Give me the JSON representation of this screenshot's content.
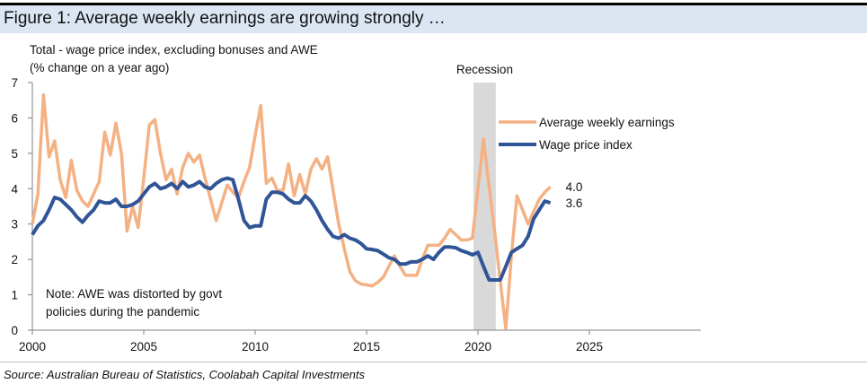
{
  "title": "Figure 1: Average weekly earnings are growing strongly …",
  "source": "Source: Australian Bureau of Statistics, Coolabah Capital Investments",
  "colors": {
    "awe": "#f4b183",
    "wpi": "#2f5597",
    "recession": "#d9d9d9",
    "title_band": "#dce6f2"
  },
  "chart_data": {
    "type": "line",
    "title": "Total - wage price index, excluding bonuses and AWE",
    "ylabel": "(% change on a year ago)",
    "xlim": [
      2000,
      2030
    ],
    "ylim": [
      0,
      7
    ],
    "xticks": [
      2000,
      2005,
      2010,
      2015,
      2020,
      2025
    ],
    "yticks": [
      0,
      1,
      2,
      3,
      4,
      5,
      6,
      7
    ],
    "grid": false,
    "legend": "right",
    "x_start": 2000,
    "x_step": 0.25,
    "recession": {
      "label": "Recession",
      "start": 2019.8,
      "end": 2020.8
    },
    "note": [
      "Note: AWE was distorted by govt",
      "policies during the pandemic"
    ],
    "series": [
      {
        "name": "Average weekly earnings",
        "end_label": "4.0",
        "values": [
          3.0,
          3.85,
          6.65,
          4.9,
          5.35,
          4.25,
          3.75,
          4.8,
          3.95,
          3.65,
          3.5,
          3.85,
          4.2,
          5.6,
          4.95,
          5.85,
          5.0,
          2.8,
          3.5,
          2.9,
          4.3,
          5.8,
          5.95,
          5.0,
          4.25,
          4.55,
          3.85,
          4.6,
          5.0,
          4.75,
          4.95,
          4.3,
          3.7,
          3.1,
          3.6,
          4.1,
          3.9,
          3.75,
          4.2,
          4.6,
          5.5,
          6.35,
          4.15,
          4.3,
          3.95,
          3.95,
          4.7,
          3.8,
          4.4,
          3.85,
          4.55,
          4.85,
          4.55,
          4.9,
          3.95,
          3.0,
          2.3,
          1.65,
          1.4,
          1.3,
          1.28,
          1.25,
          1.35,
          1.5,
          1.8,
          2.1,
          1.8,
          1.55,
          1.55,
          1.55,
          2.0,
          2.4,
          2.4,
          2.4,
          2.6,
          2.85,
          2.7,
          2.55,
          2.55,
          2.6,
          4.0,
          5.4,
          4.06,
          2.78,
          1.38,
          0.05,
          2.1,
          3.8,
          3.4,
          3.0,
          3.35,
          3.7,
          3.9,
          4.05
        ]
      },
      {
        "name": "Wage price index",
        "end_label": "3.6",
        "values": [
          2.7,
          2.95,
          3.1,
          3.4,
          3.75,
          3.7,
          3.55,
          3.4,
          3.2,
          3.05,
          3.25,
          3.4,
          3.65,
          3.6,
          3.6,
          3.7,
          3.5,
          3.5,
          3.55,
          3.65,
          3.85,
          4.05,
          4.15,
          4.0,
          4.05,
          4.15,
          4.0,
          4.2,
          4.05,
          4.1,
          4.2,
          4.05,
          4.0,
          4.15,
          4.25,
          4.3,
          4.25,
          3.7,
          3.1,
          2.9,
          2.95,
          2.95,
          3.7,
          3.9,
          3.9,
          3.85,
          3.7,
          3.6,
          3.6,
          3.8,
          3.65,
          3.4,
          3.1,
          2.85,
          2.65,
          2.6,
          2.7,
          2.6,
          2.55,
          2.45,
          2.3,
          2.28,
          2.25,
          2.15,
          2.05,
          2.0,
          1.87,
          1.87,
          1.93,
          1.93,
          2.0,
          2.1,
          2.0,
          2.2,
          2.35,
          2.35,
          2.33,
          2.25,
          2.2,
          2.13,
          2.2,
          1.8,
          1.42,
          1.42,
          1.42,
          1.8,
          2.2,
          2.3,
          2.4,
          2.65,
          3.15,
          3.4,
          3.65,
          3.6
        ]
      }
    ]
  }
}
